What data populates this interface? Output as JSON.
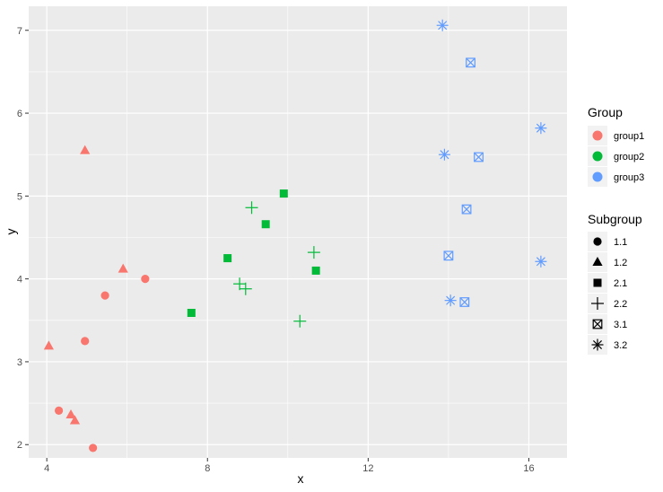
{
  "chart_data": {
    "type": "scatter",
    "xlabel": "x",
    "ylabel": "y",
    "xlim": [
      3.55,
      16.95
    ],
    "ylim": [
      1.84,
      7.29
    ],
    "x_ticks": [
      4,
      8,
      12,
      16
    ],
    "y_ticks": [
      2,
      3,
      4,
      5,
      6,
      7
    ],
    "x_tick_labels": [
      "4",
      "8",
      "12",
      "16"
    ],
    "y_tick_labels": [
      "2",
      "3",
      "4",
      "5",
      "6",
      "7"
    ],
    "grid": true,
    "legend_position": "right",
    "colors": {
      "panel": "#ebebeb",
      "grid": "#ffffff",
      "group1": "#f8766d",
      "group2": "#00ba38",
      "group3": "#619cff"
    },
    "color_legend": {
      "title": "Group",
      "entries": [
        {
          "label": "group1",
          "color": "#f8766d"
        },
        {
          "label": "group2",
          "color": "#00ba38"
        },
        {
          "label": "group3",
          "color": "#619cff"
        }
      ]
    },
    "shape_legend": {
      "title": "Subgroup",
      "entries": [
        {
          "label": "1.1",
          "shape": "circle"
        },
        {
          "label": "1.2",
          "shape": "triangle"
        },
        {
          "label": "2.1",
          "shape": "square"
        },
        {
          "label": "2.2",
          "shape": "plus"
        },
        {
          "label": "3.1",
          "shape": "boxed-x"
        },
        {
          "label": "3.2",
          "shape": "asterisk"
        }
      ]
    },
    "points": [
      {
        "x": 4.3,
        "y": 2.41,
        "group": "group1",
        "subgroup": "1.1"
      },
      {
        "x": 4.95,
        "y": 3.25,
        "group": "group1",
        "subgroup": "1.1"
      },
      {
        "x": 5.15,
        "y": 1.96,
        "group": "group1",
        "subgroup": "1.1"
      },
      {
        "x": 5.45,
        "y": 3.8,
        "group": "group1",
        "subgroup": "1.1"
      },
      {
        "x": 6.45,
        "y": 4.0,
        "group": "group1",
        "subgroup": "1.1"
      },
      {
        "x": 4.05,
        "y": 3.19,
        "group": "group1",
        "subgroup": "1.2"
      },
      {
        "x": 4.6,
        "y": 2.36,
        "group": "group1",
        "subgroup": "1.2"
      },
      {
        "x": 4.7,
        "y": 2.29,
        "group": "group1",
        "subgroup": "1.2"
      },
      {
        "x": 4.95,
        "y": 5.55,
        "group": "group1",
        "subgroup": "1.2"
      },
      {
        "x": 5.9,
        "y": 4.12,
        "group": "group1",
        "subgroup": "1.2"
      },
      {
        "x": 7.6,
        "y": 3.59,
        "group": "group2",
        "subgroup": "2.1"
      },
      {
        "x": 8.5,
        "y": 4.25,
        "group": "group2",
        "subgroup": "2.1"
      },
      {
        "x": 9.45,
        "y": 4.66,
        "group": "group2",
        "subgroup": "2.1"
      },
      {
        "x": 9.9,
        "y": 5.03,
        "group": "group2",
        "subgroup": "2.1"
      },
      {
        "x": 10.7,
        "y": 4.1,
        "group": "group2",
        "subgroup": "2.1"
      },
      {
        "x": 8.8,
        "y": 3.94,
        "group": "group2",
        "subgroup": "2.2"
      },
      {
        "x": 8.95,
        "y": 3.88,
        "group": "group2",
        "subgroup": "2.2"
      },
      {
        "x": 9.1,
        "y": 4.86,
        "group": "group2",
        "subgroup": "2.2"
      },
      {
        "x": 10.3,
        "y": 3.49,
        "group": "group2",
        "subgroup": "2.2"
      },
      {
        "x": 10.65,
        "y": 4.32,
        "group": "group2",
        "subgroup": "2.2"
      },
      {
        "x": 14.0,
        "y": 4.28,
        "group": "group3",
        "subgroup": "3.1"
      },
      {
        "x": 14.4,
        "y": 3.72,
        "group": "group3",
        "subgroup": "3.1"
      },
      {
        "x": 14.45,
        "y": 4.84,
        "group": "group3",
        "subgroup": "3.1"
      },
      {
        "x": 14.55,
        "y": 6.61,
        "group": "group3",
        "subgroup": "3.1"
      },
      {
        "x": 14.75,
        "y": 5.47,
        "group": "group3",
        "subgroup": "3.1"
      },
      {
        "x": 13.85,
        "y": 7.06,
        "group": "group3",
        "subgroup": "3.2"
      },
      {
        "x": 13.9,
        "y": 5.5,
        "group": "group3",
        "subgroup": "3.2"
      },
      {
        "x": 14.05,
        "y": 3.74,
        "group": "group3",
        "subgroup": "3.2"
      },
      {
        "x": 16.3,
        "y": 5.82,
        "group": "group3",
        "subgroup": "3.2"
      },
      {
        "x": 16.3,
        "y": 4.21,
        "group": "group3",
        "subgroup": "3.2"
      }
    ]
  }
}
